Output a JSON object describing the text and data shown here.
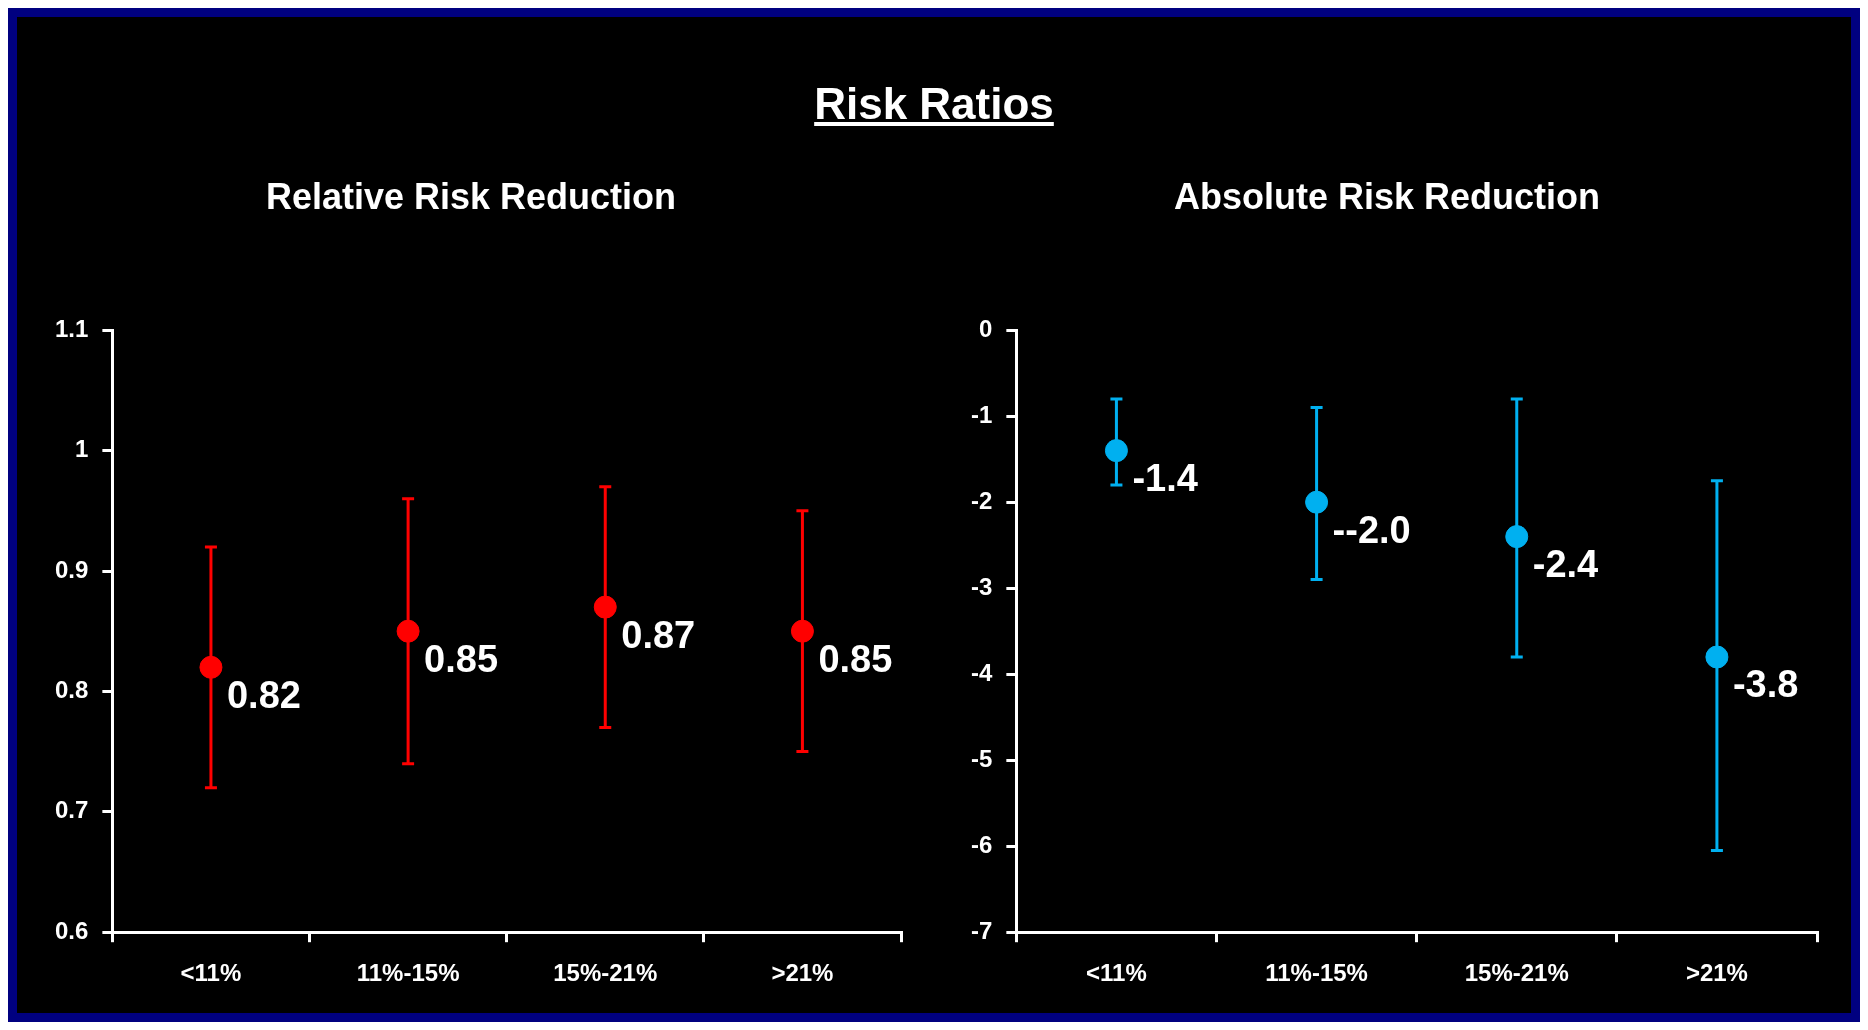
{
  "chart_data": [
    {
      "type": "scatter",
      "title": "Risk Ratios",
      "subtitle": "Relative Risk Reduction",
      "categories": [
        "<11%",
        "11%-15%",
        "15%-21%",
        ">21%"
      ],
      "series": [
        {
          "color": "#ff0000",
          "values": [
            0.82,
            0.85,
            0.87,
            0.85
          ],
          "errors": [
            [
              0.72,
              0.92
            ],
            [
              0.74,
              0.96
            ],
            [
              0.77,
              0.97
            ],
            [
              0.75,
              0.95
            ]
          ],
          "value_labels": [
            "0.82",
            "0.85",
            "0.87",
            "0.85"
          ]
        }
      ],
      "ylim": [
        0.6,
        1.1
      ],
      "yticks": [
        0.6,
        0.7,
        0.8,
        0.9,
        1,
        1.1
      ],
      "grid": false,
      "marker": "circle"
    },
    {
      "type": "scatter",
      "subtitle": "Absolute Risk Reduction",
      "categories": [
        "<11%",
        "11%-15%",
        "15%-21%",
        ">21%"
      ],
      "series": [
        {
          "color": "#00b0f0",
          "values": [
            -1.4,
            -2.0,
            -2.4,
            -3.8
          ],
          "errors": [
            [
              -1.8,
              -0.8
            ],
            [
              -2.9,
              -0.9
            ],
            [
              -3.8,
              -0.8
            ],
            [
              -6.05,
              -1.75
            ]
          ],
          "value_labels": [
            "-1.4",
            "--2.0",
            "-2.4",
            "-3.8"
          ]
        }
      ],
      "ylim": [
        -7,
        0
      ],
      "yticks": [
        -7,
        -6,
        -5,
        -4,
        -3,
        -2,
        -1,
        0
      ],
      "grid": false,
      "marker": "circle"
    }
  ]
}
